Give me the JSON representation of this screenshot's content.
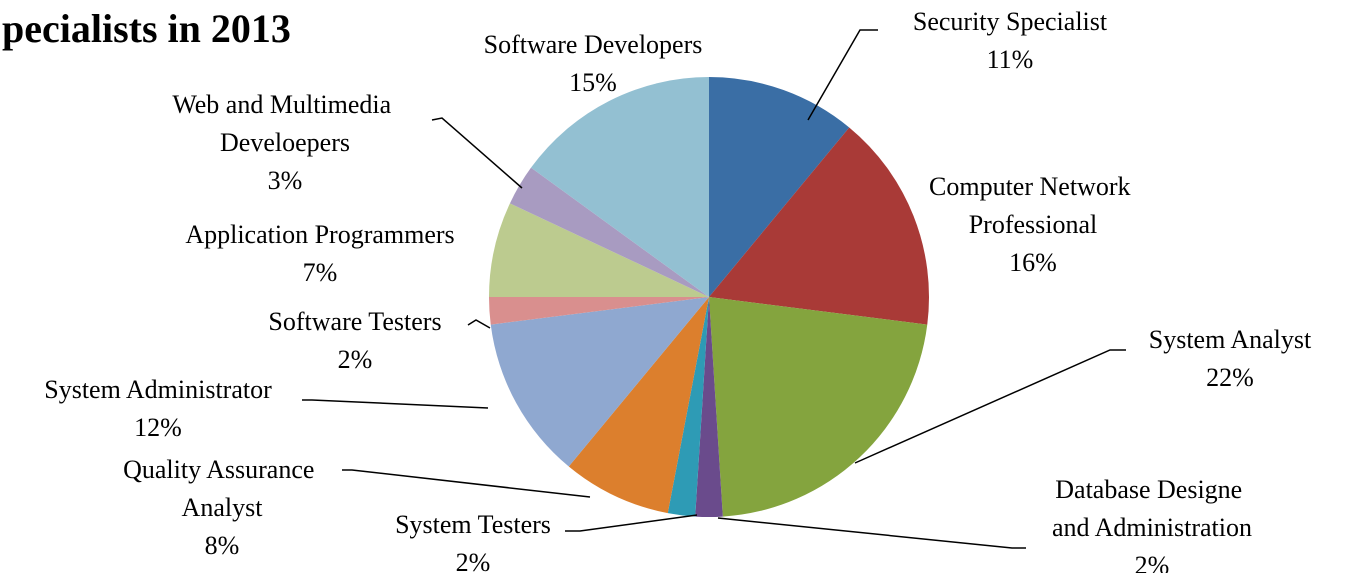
{
  "chart_data": {
    "type": "pie",
    "title": "pecialists in 2013",
    "categories": [
      "Security Specialist",
      "Computer Network Professional",
      "System Analyst",
      "Database Designe and Administration",
      "System Testers",
      "Quality Assurance Analyst",
      "System Administrator",
      "Software Testers",
      "Application Programmers",
      "Web and Multimedia Develoepers",
      "Software Developers"
    ],
    "values": [
      11,
      16,
      22,
      2,
      2,
      8,
      12,
      2,
      7,
      3,
      15
    ],
    "value_labels": [
      "11%",
      "16%",
      "22%",
      "2%",
      "2%",
      "8%",
      "12%",
      "2%",
      "7%",
      "3%",
      "15%"
    ],
    "colors": [
      "#3a6ea5",
      "#a93a37",
      "#84a43e",
      "#6a4b8c",
      "#2e9bb5",
      "#dc7f2d",
      "#8fa8d0",
      "#d98f8e",
      "#bccb8f",
      "#a89bc1",
      "#93c0d2"
    ]
  }
}
